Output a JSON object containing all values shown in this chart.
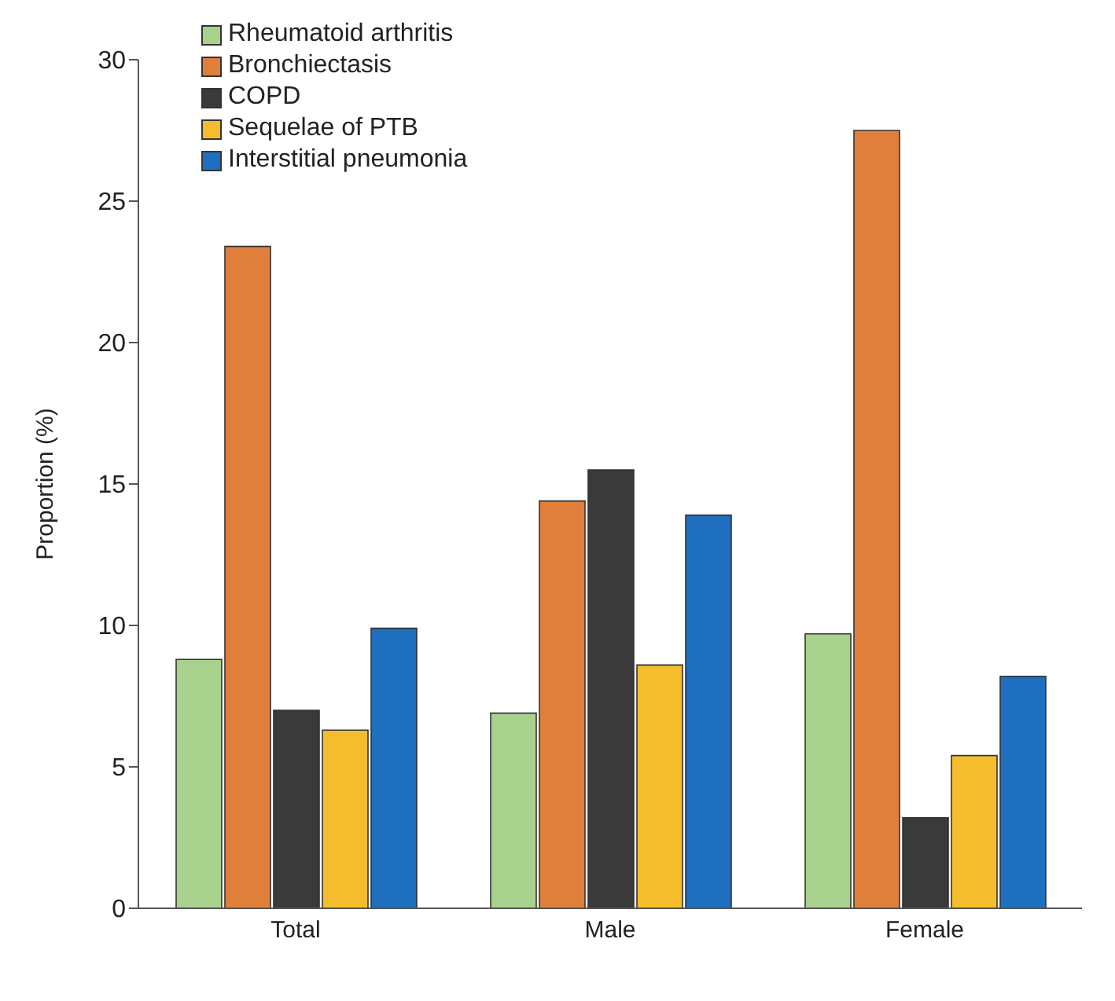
{
  "chart_data": {
    "type": "bar",
    "ylabel": "Proportion (%)",
    "categories": [
      "Total",
      "Male",
      "Female"
    ],
    "series": [
      {
        "name": "Rheumatoid arthritis",
        "color": "#a9d18e",
        "values": [
          8.8,
          6.9,
          9.7
        ]
      },
      {
        "name": "Bronchiectasis",
        "color": "#e07f3c",
        "values": [
          23.4,
          14.4,
          27.5
        ]
      },
      {
        "name": "COPD",
        "color": "#3a3a3a",
        "values": [
          7.0,
          15.5,
          3.2
        ]
      },
      {
        "name": "Sequelae of PTB",
        "color": "#f5bd2c",
        "values": [
          6.3,
          8.6,
          5.4
        ]
      },
      {
        "name": "Interstitial pneumonia",
        "color": "#1f6fc0",
        "values": [
          9.9,
          13.9,
          8.2
        ]
      }
    ],
    "ylim": [
      0,
      30
    ],
    "yticks": [
      0,
      5,
      10,
      15,
      20,
      25,
      30
    ],
    "grid": false,
    "legend": "top left"
  }
}
